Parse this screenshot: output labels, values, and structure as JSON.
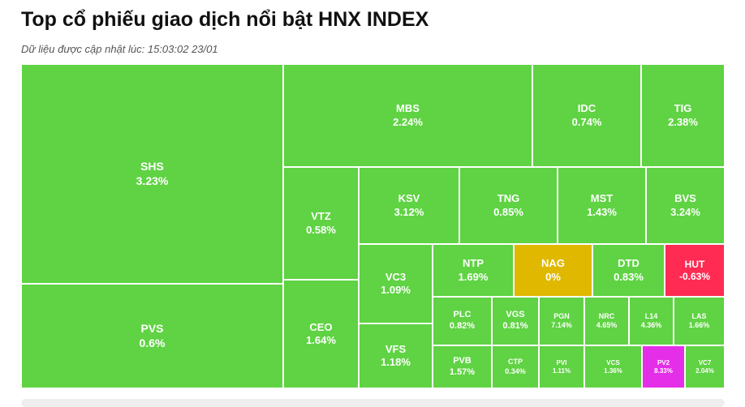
{
  "header": {
    "title": "Top cổ phiếu giao dịch nổi bật HNX INDEX",
    "updated": "Dữ liệu được cập nhật lúc: 15:03:02 23/01"
  },
  "colors": {
    "up": "#5fd343",
    "flat": "#e0b800",
    "down": "#ff2b52",
    "ceiling": "#e52ee8",
    "text": "#ffffff"
  },
  "chart_data": {
    "type": "treemap",
    "title": "Top cổ phiếu giao dịch nổi bật HNX INDEX",
    "items": [
      {
        "ticker": "SHS",
        "change": "3.23%",
        "status": "up"
      },
      {
        "ticker": "PVS",
        "change": "0.6%",
        "status": "up"
      },
      {
        "ticker": "MBS",
        "change": "2.24%",
        "status": "up"
      },
      {
        "ticker": "IDC",
        "change": "0.74%",
        "status": "up"
      },
      {
        "ticker": "TIG",
        "change": "2.38%",
        "status": "up"
      },
      {
        "ticker": "VTZ",
        "change": "0.58%",
        "status": "up"
      },
      {
        "ticker": "CEO",
        "change": "1.64%",
        "status": "up"
      },
      {
        "ticker": "KSV",
        "change": "3.12%",
        "status": "up"
      },
      {
        "ticker": "TNG",
        "change": "0.85%",
        "status": "up"
      },
      {
        "ticker": "MST",
        "change": "1.43%",
        "status": "up"
      },
      {
        "ticker": "BVS",
        "change": "3.24%",
        "status": "up"
      },
      {
        "ticker": "VC3",
        "change": "1.09%",
        "status": "up"
      },
      {
        "ticker": "VFS",
        "change": "1.18%",
        "status": "up"
      },
      {
        "ticker": "NTP",
        "change": "1.69%",
        "status": "up"
      },
      {
        "ticker": "NAG",
        "change": "0%",
        "status": "flat"
      },
      {
        "ticker": "DTD",
        "change": "0.83%",
        "status": "up"
      },
      {
        "ticker": "HUT",
        "change": "-0.63%",
        "status": "down"
      },
      {
        "ticker": "PLC",
        "change": "0.82%",
        "status": "up"
      },
      {
        "ticker": "VGS",
        "change": "0.81%",
        "status": "up"
      },
      {
        "ticker": "PVB",
        "change": "1.57%",
        "status": "up"
      },
      {
        "ticker": "CTP",
        "change": "0.34%",
        "status": "up"
      },
      {
        "ticker": "PGN",
        "change": "7.14%",
        "status": "up"
      },
      {
        "ticker": "NRC",
        "change": "4.65%",
        "status": "up"
      },
      {
        "ticker": "L14",
        "change": "4.36%",
        "status": "up"
      },
      {
        "ticker": "LAS",
        "change": "1.66%",
        "status": "up"
      },
      {
        "ticker": "PVI",
        "change": "1.11%",
        "status": "up"
      },
      {
        "ticker": "VCS",
        "change": "1.36%",
        "status": "up"
      },
      {
        "ticker": "PV2",
        "change": "8.33%",
        "status": "ceiling"
      },
      {
        "ticker": "VC7",
        "change": "2.04%",
        "status": "up"
      }
    ]
  }
}
